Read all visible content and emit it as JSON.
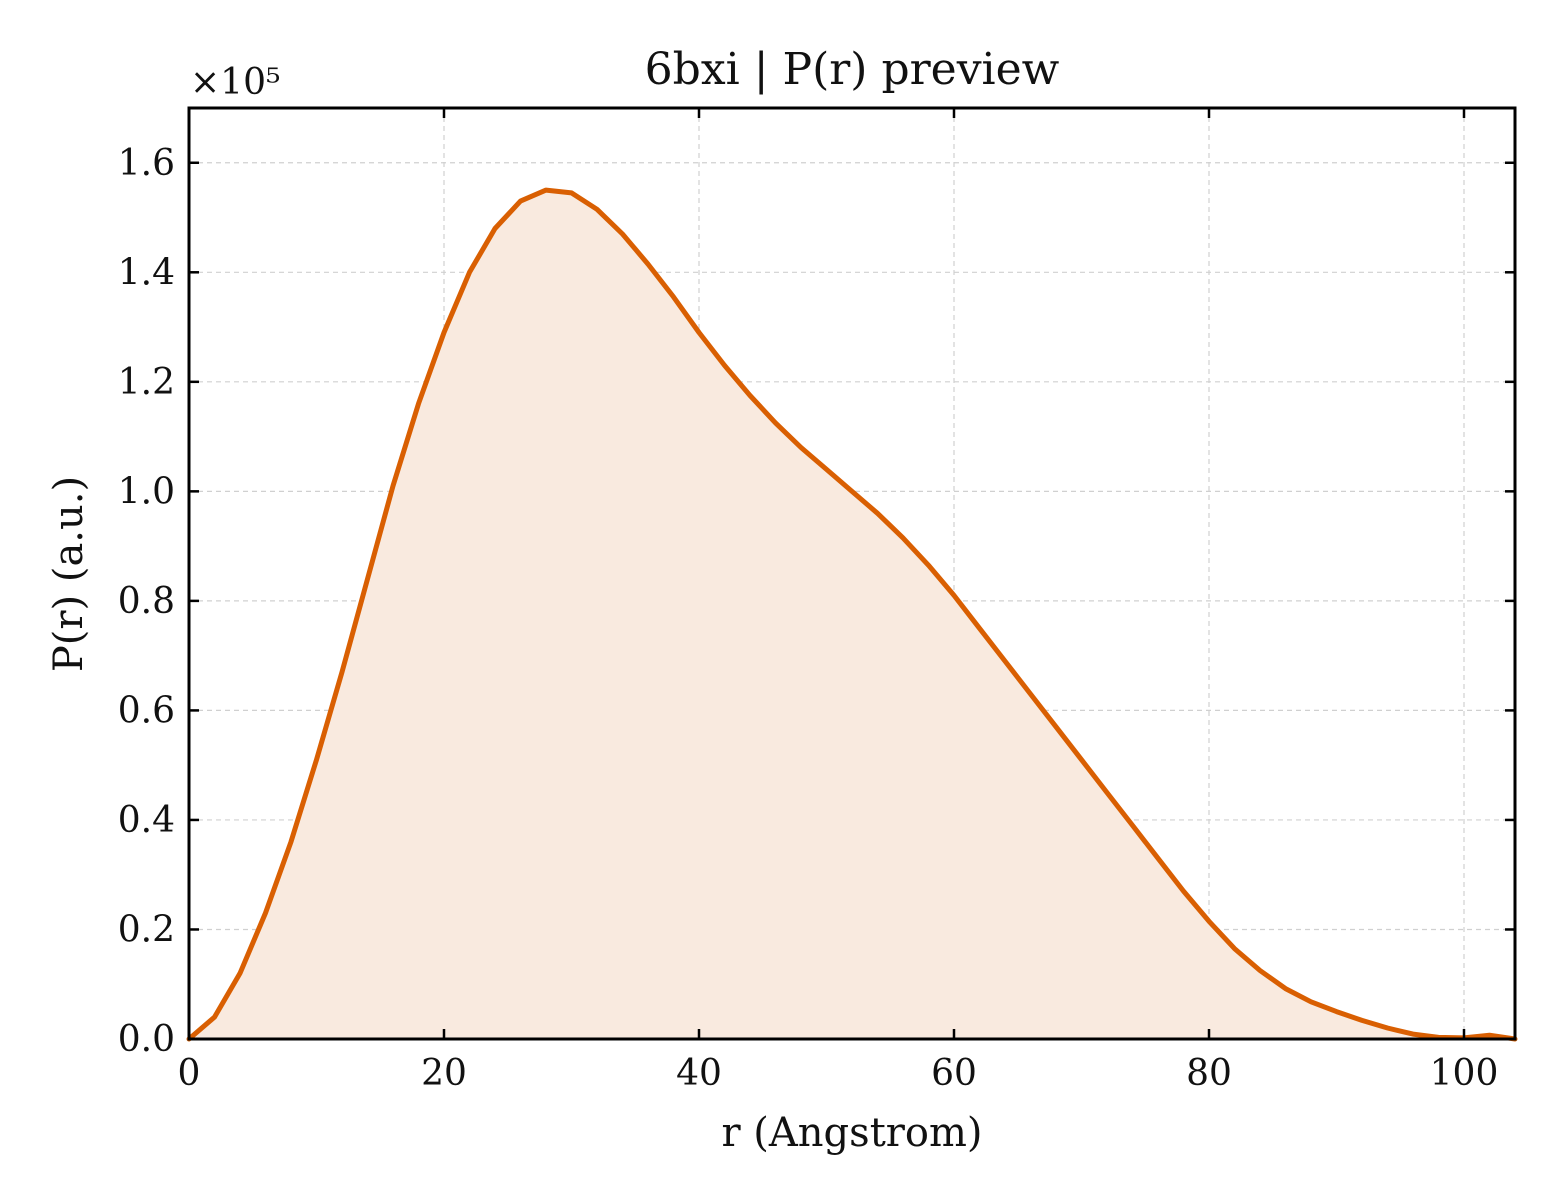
{
  "chart_data": {
    "type": "area",
    "title": "6bxi | P(r) preview",
    "xlabel": "r (Angstrom)",
    "ylabel": "P(r) (a.u.)",
    "y_multiplier": "×10⁵",
    "xlim": [
      0,
      104
    ],
    "ylim": [
      0,
      1.7
    ],
    "x_ticks": [
      0,
      20,
      40,
      60,
      80,
      100
    ],
    "x_tick_labels": [
      "0",
      "20",
      "40",
      "60",
      "80",
      "100"
    ],
    "y_ticks": [
      0.0,
      0.2,
      0.4,
      0.6,
      0.8,
      1.0,
      1.2,
      1.4,
      1.6
    ],
    "y_tick_labels": [
      "0.0",
      "0.2",
      "0.4",
      "0.6",
      "0.8",
      "1.0",
      "1.2",
      "1.4",
      "1.6"
    ],
    "grid": true,
    "colors": {
      "line": "#d95f02",
      "fill": "#f9eadf",
      "grid": "#d0d0d0"
    },
    "series": [
      {
        "x": [
          0,
          2,
          4,
          6,
          8,
          10,
          12,
          14,
          16,
          18,
          20,
          22,
          24,
          26,
          28,
          30,
          32,
          34,
          36,
          38,
          40,
          42,
          44,
          46,
          48,
          50,
          52,
          54,
          56,
          58,
          60,
          62,
          64,
          66,
          68,
          70,
          72,
          74,
          76,
          78,
          80,
          82,
          84,
          86,
          88,
          90,
          92,
          94,
          96,
          98,
          100,
          102,
          104
        ],
        "y": [
          0.0,
          0.04,
          0.12,
          0.23,
          0.36,
          0.51,
          0.67,
          0.84,
          1.01,
          1.16,
          1.29,
          1.4,
          1.48,
          1.53,
          1.55,
          1.545,
          1.515,
          1.47,
          1.415,
          1.355,
          1.29,
          1.23,
          1.175,
          1.125,
          1.08,
          1.04,
          1.0,
          0.96,
          0.915,
          0.865,
          0.81,
          0.75,
          0.69,
          0.63,
          0.57,
          0.51,
          0.45,
          0.39,
          0.33,
          0.27,
          0.215,
          0.165,
          0.125,
          0.092,
          0.068,
          0.05,
          0.034,
          0.02,
          0.009,
          0.003,
          0.002,
          0.007,
          0.0
        ]
      }
    ]
  }
}
